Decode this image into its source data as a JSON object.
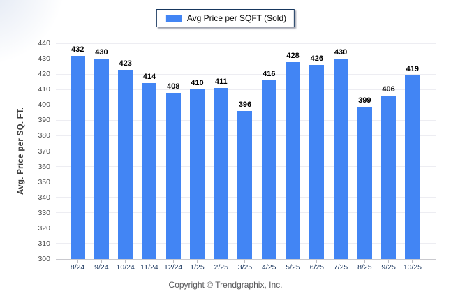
{
  "legend": {
    "label": "Avg Price per SQFT (Sold)"
  },
  "footer": {
    "text": "Copyright © Trendgraphix, Inc."
  },
  "colors": {
    "bar": "#4285f4",
    "legend_border": "#17375e",
    "grid": "#ededf2",
    "axis_line": "#c9c9ce",
    "x_label": "#1f3a60",
    "y_label": "#4a4a4a",
    "value_label": "#000000"
  },
  "chart_data": {
    "type": "bar",
    "title": "Avg Price per SQFT (Sold)",
    "categories": [
      "8/24",
      "9/24",
      "10/24",
      "11/24",
      "12/24",
      "1/25",
      "2/25",
      "3/25",
      "4/25",
      "5/25",
      "6/25",
      "7/25",
      "8/25",
      "9/25",
      "10/25"
    ],
    "values": [
      432,
      430,
      423,
      414,
      408,
      410,
      411,
      396,
      416,
      428,
      426,
      430,
      399,
      406,
      419
    ],
    "xlabel": "",
    "ylabel": "Avg. Price per SQ. FT.",
    "ylim": [
      300,
      440
    ],
    "ytick_step": 10,
    "grid": true,
    "legend_position": "top-center",
    "value_labels": true
  }
}
